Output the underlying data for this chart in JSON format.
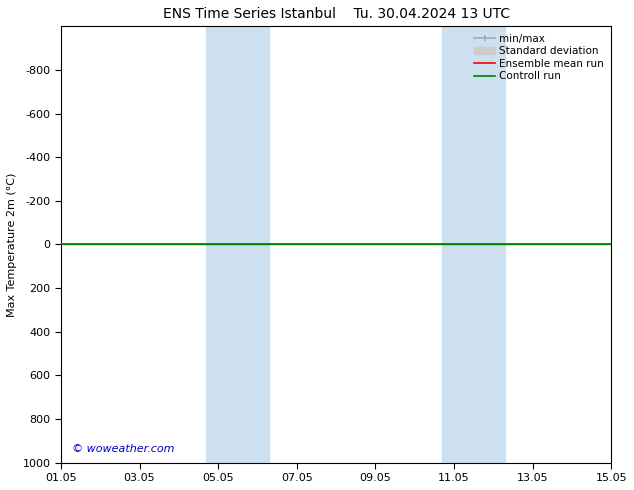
{
  "title_left": "ENS Time Series Istanbul",
  "title_right": "Tu. 30.04.2024 13 UTC",
  "ylabel": "Max Temperature 2m (°C)",
  "xtick_labels": [
    "01.05",
    "03.05",
    "05.05",
    "07.05",
    "09.05",
    "11.05",
    "13.05",
    "15.05"
  ],
  "xtick_positions": [
    0,
    2,
    4,
    6,
    8,
    10,
    12,
    14
  ],
  "ylim_top": -1000,
  "ylim_bottom": 1000,
  "ytick_positions": [
    -800,
    -600,
    -400,
    -200,
    0,
    200,
    400,
    600,
    800,
    1000
  ],
  "ytick_labels": [
    "-800",
    "-600",
    "-400",
    "-200",
    "0",
    "200",
    "400",
    "600",
    "800",
    "1000"
  ],
  "background_color": "#ffffff",
  "plot_bg_color": "#ffffff",
  "shaded_bands": [
    {
      "x_start": 3.7,
      "x_end": 5.3,
      "color": "#cce0f0"
    },
    {
      "x_start": 9.7,
      "x_end": 11.3,
      "color": "#cce0f0"
    }
  ],
  "horizontal_line_y": 0,
  "horizontal_line_color_red": "#ff0000",
  "horizontal_line_color_green": "#008000",
  "watermark": "© woweather.com",
  "watermark_color": "#0000cc",
  "legend_items": [
    {
      "label": "min/max",
      "color": "#aaaaaa",
      "lw": 1.5
    },
    {
      "label": "Standard deviation",
      "color": "#cccccc",
      "lw": 6
    },
    {
      "label": "Ensemble mean run",
      "color": "#ff0000",
      "lw": 1.5
    },
    {
      "label": "Controll run",
      "color": "#008000",
      "lw": 1.5
    }
  ],
  "font_size_title": 10,
  "font_size_axis": 8,
  "font_size_legend": 7.5,
  "font_size_ticks": 8,
  "spine_color": "#000000"
}
